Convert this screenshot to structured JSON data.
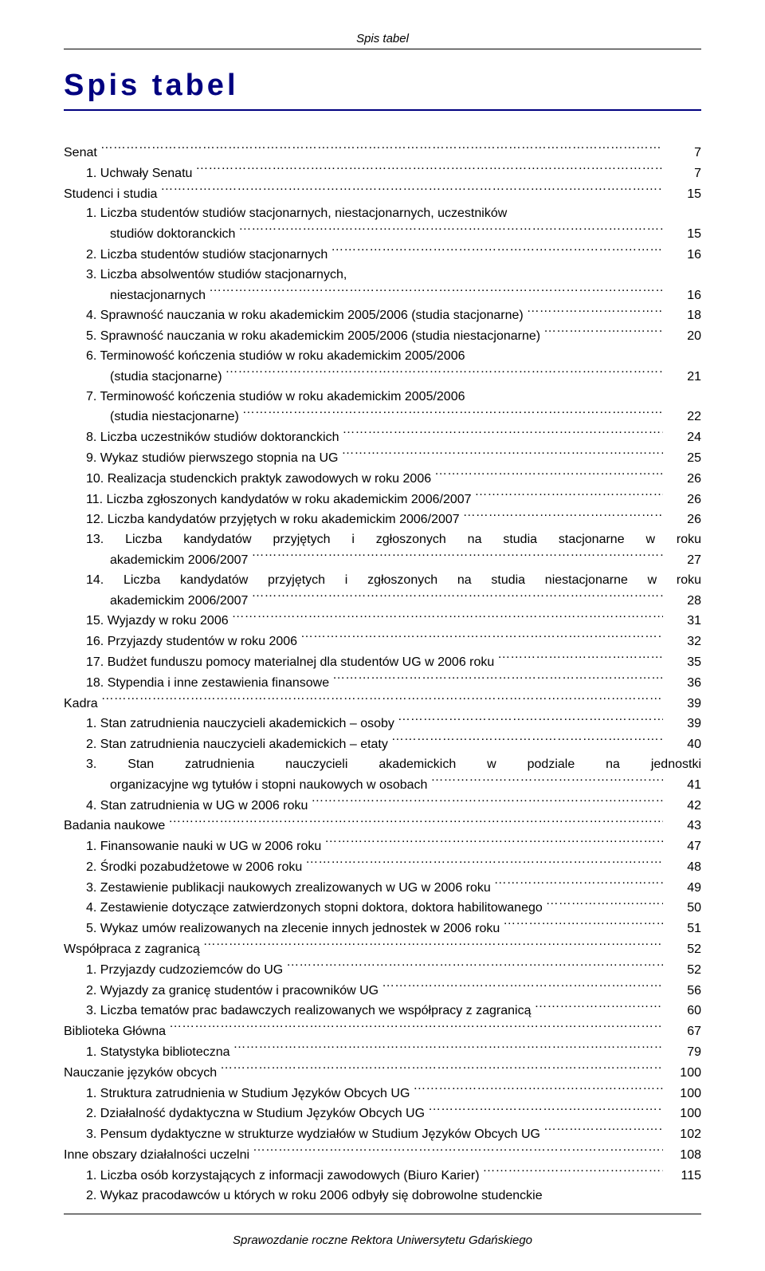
{
  "header": "Spis tabel",
  "title": "Spis tabel",
  "footer": "Sprawozdanie roczne Rektora Uniwersytetu Gdańskiego",
  "colors": {
    "title": "#000080",
    "text": "#000000",
    "background": "#ffffff"
  },
  "entries": [
    {
      "level": 0,
      "text": "Senat",
      "page": "7"
    },
    {
      "level": 1,
      "text": "1. Uchwały Senatu",
      "page": "7"
    },
    {
      "level": 0,
      "text": "Studenci i studia",
      "page": "15"
    },
    {
      "level": 1,
      "text": "1. Liczba studentów studiów stacjonarnych, niestacjonarnych, uczestników",
      "cont": "studiów doktoranckich",
      "page": "15"
    },
    {
      "level": 1,
      "text": "2. Liczba studentów studiów stacjonarnych",
      "page": "16"
    },
    {
      "level": 1,
      "text": "3. Liczba absolwentów studiów stacjonarnych,",
      "cont": "niestacjonarnych",
      "page": "16"
    },
    {
      "level": 1,
      "text": "4. Sprawność nauczania w roku akademickim 2005/2006 (studia stacjonarne)",
      "page": "18"
    },
    {
      "level": 1,
      "text": "5. Sprawność nauczania w roku akademickim 2005/2006 (studia niestacjonarne)",
      "page": "20"
    },
    {
      "level": 1,
      "text": "6. Terminowość kończenia studiów w roku akademickim 2005/2006",
      "cont": "(studia stacjonarne)",
      "page": "21"
    },
    {
      "level": 1,
      "text": "7. Terminowość kończenia studiów w roku akademickim 2005/2006",
      "cont": "(studia niestacjonarne)",
      "page": "22"
    },
    {
      "level": 1,
      "text": "8. Liczba uczestników studiów doktoranckich",
      "page": "24"
    },
    {
      "level": 1,
      "text": "9. Wykaz studiów pierwszego stopnia na UG",
      "page": "25"
    },
    {
      "level": 1,
      "text": "10. Realizacja studenckich praktyk zawodowych w roku 2006",
      "page": "26"
    },
    {
      "level": 1,
      "text": "11. Liczba zgłoszonych kandydatów w roku akademickim 2006/2007",
      "page": "26"
    },
    {
      "level": 1,
      "text": "12. Liczba kandydatów przyjętych w roku akademickim 2006/2007",
      "page": "26"
    },
    {
      "level": 1,
      "justify": true,
      "text": "13. Liczba kandydatów przyjętych i zgłoszonych na studia stacjonarne w roku",
      "cont": "akademickim 2006/2007",
      "page": "27"
    },
    {
      "level": 1,
      "justify": true,
      "text": "14. Liczba kandydatów przyjętych i zgłoszonych na studia niestacjonarne w roku",
      "cont": "akademickim 2006/2007",
      "page": "28"
    },
    {
      "level": 1,
      "text": "15. Wyjazdy w roku 2006",
      "page": "31"
    },
    {
      "level": 1,
      "text": "16. Przyjazdy studentów w roku 2006",
      "page": "32"
    },
    {
      "level": 1,
      "text": "17. Budżet funduszu pomocy materialnej dla studentów UG w 2006 roku",
      "page": "35"
    },
    {
      "level": 1,
      "text": "18. Stypendia i inne zestawienia finansowe",
      "page": "36"
    },
    {
      "level": 0,
      "text": "Kadra",
      "page": "39"
    },
    {
      "level": 1,
      "text": "1. Stan zatrudnienia nauczycieli akademickich – osoby",
      "page": "39"
    },
    {
      "level": 1,
      "text": "2. Stan zatrudnienia nauczycieli akademickich – etaty",
      "page": "40"
    },
    {
      "level": 1,
      "justify": true,
      "text": "3. Stan zatrudnienia nauczycieli akademickich w podziale na jednostki",
      "cont": "organizacyjne wg tytułów i stopni naukowych w osobach",
      "page": "41"
    },
    {
      "level": 1,
      "text": "4. Stan zatrudnienia w UG w 2006 roku",
      "page": "42"
    },
    {
      "level": 0,
      "text": "Badania naukowe",
      "page": "43"
    },
    {
      "level": 1,
      "text": "1. Finansowanie nauki w UG w 2006 roku",
      "page": "47"
    },
    {
      "level": 1,
      "text": "2. Środki pozabudżetowe w 2006 roku",
      "page": "48"
    },
    {
      "level": 1,
      "text": "3. Zestawienie publikacji naukowych zrealizowanych w UG w 2006 roku",
      "page": "49"
    },
    {
      "level": 1,
      "text": "4. Zestawienie dotyczące zatwierdzonych stopni doktora, doktora habilitowanego",
      "page": "50"
    },
    {
      "level": 1,
      "text": "5. Wykaz umów realizowanych na zlecenie innych jednostek w 2006 roku",
      "page": "51"
    },
    {
      "level": 0,
      "text": "Współpraca z zagranicą",
      "page": "52"
    },
    {
      "level": 1,
      "text": "1. Przyjazdy cudzoziemców do UG",
      "page": "52"
    },
    {
      "level": 1,
      "text": "2. Wyjazdy za granicę studentów i pracowników UG",
      "page": "56"
    },
    {
      "level": 1,
      "text": "3. Liczba tematów prac badawczych realizowanych we współpracy z zagranicą",
      "page": "60"
    },
    {
      "level": 0,
      "text": "Biblioteka Główna",
      "page": "67"
    },
    {
      "level": 1,
      "text": "1. Statystyka biblioteczna",
      "page": "79"
    },
    {
      "level": 0,
      "text": "Nauczanie języków obcych",
      "page": "100"
    },
    {
      "level": 1,
      "text": "1. Struktura zatrudnienia w Studium Języków Obcych UG",
      "page": "100"
    },
    {
      "level": 1,
      "text": "2. Działalność dydaktyczna w Studium Języków Obcych UG",
      "page": "100"
    },
    {
      "level": 1,
      "text": "3. Pensum dydaktyczne w strukturze wydziałów w Studium Języków Obcych UG",
      "page": "102"
    },
    {
      "level": 0,
      "text": "Inne obszary działalności uczelni",
      "page": "108"
    },
    {
      "level": 1,
      "text": "1. Liczba osób korzystających z informacji zawodowych (Biuro Karier)",
      "page": "115"
    },
    {
      "level": 1,
      "text": "2. Wykaz pracodawców u których  w roku 2006 odbyły się dobrowolne studenckie",
      "nopagenum": true
    }
  ]
}
